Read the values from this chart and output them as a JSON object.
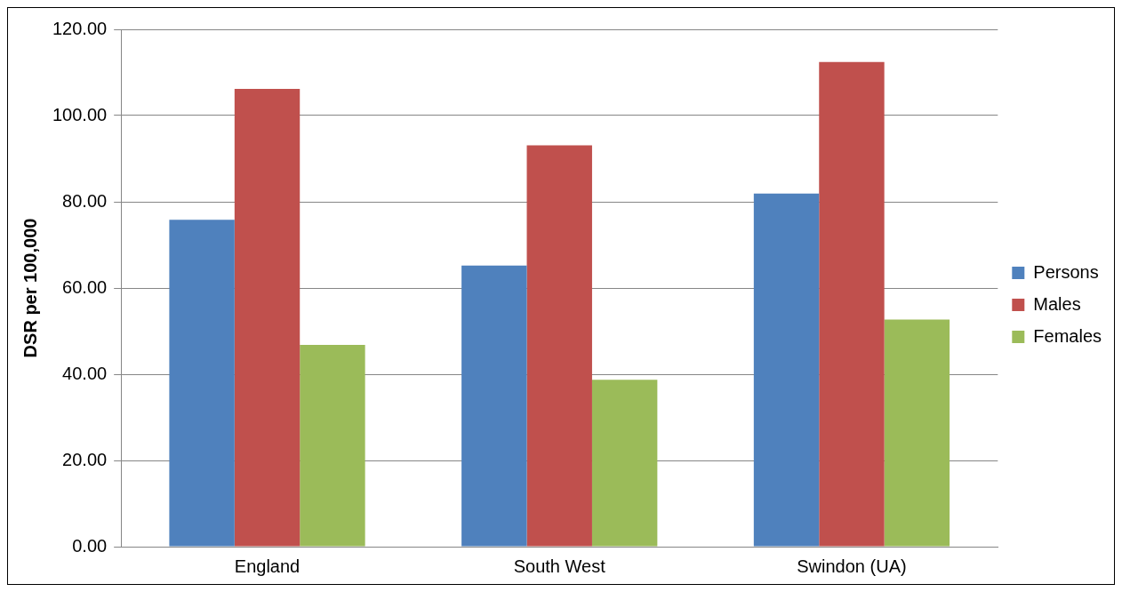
{
  "chart_data": {
    "type": "bar",
    "ylabel": "DSR per 100,000",
    "categories": [
      "England",
      "South West",
      "Swindon (UA)"
    ],
    "series": [
      {
        "name": "Persons",
        "color": "#4f81bd",
        "values": [
          75.8,
          65.2,
          81.9
        ]
      },
      {
        "name": "Males",
        "color": "#c0504d",
        "values": [
          106.2,
          93.1,
          112.4
        ]
      },
      {
        "name": "Females",
        "color": "#9bbb59",
        "values": [
          46.8,
          38.7,
          52.7
        ]
      }
    ],
    "ylim": [
      0,
      120
    ],
    "yticks": [
      {
        "value": 0,
        "label": "0.00"
      },
      {
        "value": 20,
        "label": "20.00"
      },
      {
        "value": 40,
        "label": "40.00"
      },
      {
        "value": 60,
        "label": "60.00"
      },
      {
        "value": 80,
        "label": "80.00"
      },
      {
        "value": 100,
        "label": "100.00"
      },
      {
        "value": 120,
        "label": "120.00"
      }
    ],
    "grid": "y",
    "legend": "right"
  }
}
